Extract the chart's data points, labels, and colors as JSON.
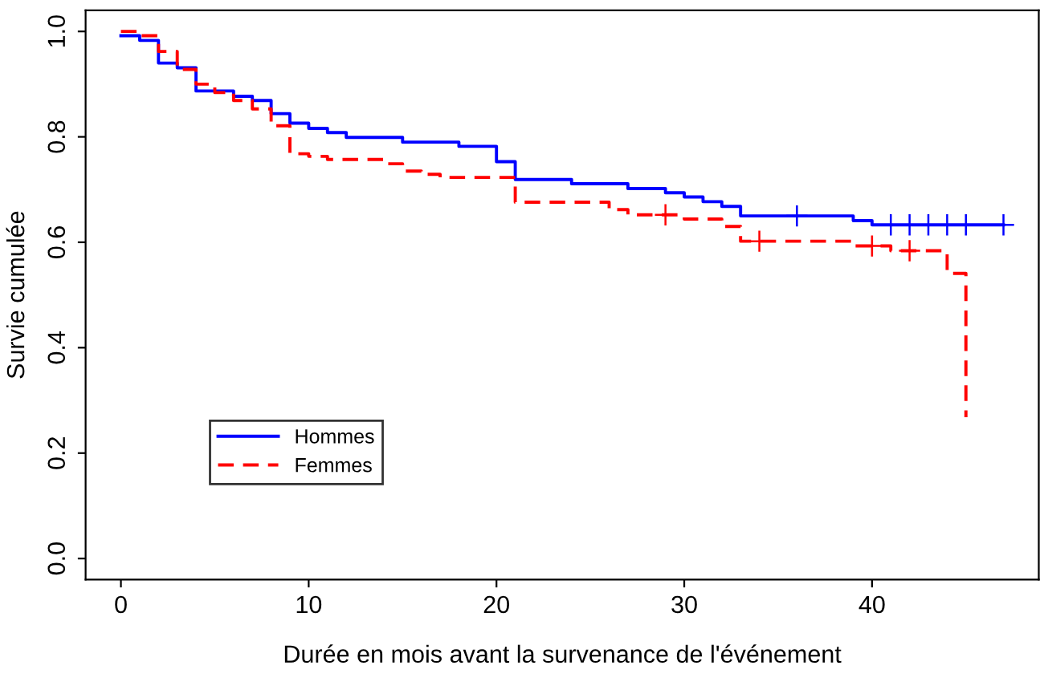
{
  "chart_data": {
    "type": "step",
    "xlabel": "Durée en mois avant la survenance de l'événement",
    "ylabel": "Survie cumulée",
    "series": [
      {
        "name": "Hommes",
        "color": "#0000ff",
        "line_style": "solid",
        "x": [
          0,
          1,
          2,
          3,
          4,
          6,
          7,
          8,
          9,
          10,
          11,
          12,
          15,
          18,
          20,
          21,
          24,
          27,
          29,
          30,
          31,
          32,
          33,
          39,
          40,
          47
        ],
        "values": [
          0.992,
          0.983,
          0.94,
          0.931,
          0.887,
          0.877,
          0.869,
          0.844,
          0.826,
          0.816,
          0.808,
          0.799,
          0.79,
          0.782,
          0.753,
          0.719,
          0.711,
          0.702,
          0.694,
          0.686,
          0.677,
          0.668,
          0.65,
          0.641,
          0.633,
          0.633
        ]
      },
      {
        "name": "Femmes",
        "color": "#ff0000",
        "line_style": "dashed",
        "x": [
          0,
          1,
          2,
          3,
          4,
          5,
          6,
          7,
          8,
          9,
          10,
          11,
          14,
          15,
          16,
          17,
          21,
          26,
          27,
          30,
          32,
          33,
          39,
          41,
          44,
          45
        ],
        "values": [
          1.0,
          0.992,
          0.962,
          0.928,
          0.9,
          0.884,
          0.869,
          0.853,
          0.821,
          0.768,
          0.763,
          0.757,
          0.749,
          0.735,
          0.729,
          0.723,
          0.676,
          0.662,
          0.652,
          0.644,
          0.63,
          0.602,
          0.593,
          0.584,
          0.541,
          0.268
        ]
      },
      {
        "type": "scatter",
        "marker": "cross",
        "color": "#0000ff",
        "x": [
          36,
          41,
          42,
          43,
          44,
          45,
          47
        ],
        "values": [
          0.65,
          0.633,
          0.633,
          0.633,
          0.633,
          0.633,
          0.633
        ]
      },
      {
        "type": "scatter",
        "marker": "cross",
        "color": "#ff0000",
        "x": [
          29,
          34,
          40,
          42
        ],
        "values": [
          0.652,
          0.602,
          0.593,
          0.584
        ]
      }
    ],
    "xlim": [
      -1.88,
      48.88
    ],
    "ylim": [
      -0.04,
      1.04
    ],
    "xticks": [
      0,
      10,
      20,
      30,
      40
    ],
    "yticks": [
      {
        "value": 0,
        "label": "0.0"
      },
      {
        "value": 0.2,
        "label": "0.2"
      },
      {
        "value": 0.4,
        "label": "0.4"
      },
      {
        "value": 0.6,
        "label": "0.6"
      },
      {
        "value": 0.8,
        "label": "0.8"
      },
      {
        "value": 1,
        "label": "1.0"
      }
    ],
    "grid": false,
    "legend": "lower left"
  }
}
